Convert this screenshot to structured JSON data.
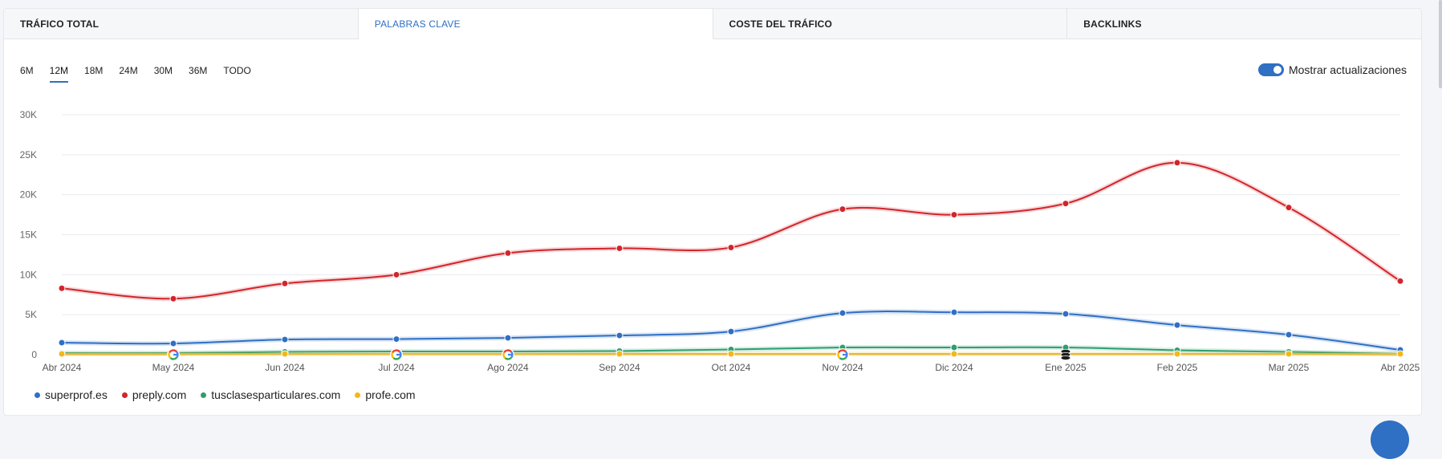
{
  "tabs": [
    {
      "label": "TRÁFICO TOTAL",
      "active": false
    },
    {
      "label": "PALABRAS CLAVE",
      "active": true
    },
    {
      "label": "COSTE DEL TRÁFICO",
      "active": false
    },
    {
      "label": "BACKLINKS",
      "active": false
    }
  ],
  "ranges": [
    {
      "label": "6M",
      "active": false
    },
    {
      "label": "12M",
      "active": true
    },
    {
      "label": "18M",
      "active": false
    },
    {
      "label": "24M",
      "active": false
    },
    {
      "label": "30M",
      "active": false
    },
    {
      "label": "36M",
      "active": false
    },
    {
      "label": "TODO",
      "active": false
    }
  ],
  "toggle": {
    "label": "Mostrar actualizaciones",
    "on": true
  },
  "colors": {
    "accent": "#2f6fc4",
    "superprof": "#2f6fc4",
    "preply": "#d1252b",
    "tusclases": "#2f9e6e",
    "profe": "#f1b81b"
  },
  "chart_data": {
    "type": "line",
    "title": "",
    "xlabel": "",
    "ylabel": "",
    "categories": [
      "Abr 2024",
      "May 2024",
      "Jun 2024",
      "Jul 2024",
      "Ago 2024",
      "Sep 2024",
      "Oct 2024",
      "Nov 2024",
      "Dic 2024",
      "Ene 2025",
      "Feb 2025",
      "Mar 2025",
      "Abr 2025"
    ],
    "ylim": [
      0,
      30000
    ],
    "yticks": [
      {
        "value": 0,
        "label": "0"
      },
      {
        "value": 5000,
        "label": "5K"
      },
      {
        "value": 10000,
        "label": "10K"
      },
      {
        "value": 15000,
        "label": "15K"
      },
      {
        "value": 20000,
        "label": "20K"
      },
      {
        "value": 25000,
        "label": "25K"
      },
      {
        "value": 30000,
        "label": "30K"
      }
    ],
    "grid": true,
    "legend_position": "bottom-left",
    "series": [
      {
        "name": "superprof.es",
        "color": "#2f6fc4",
        "values": [
          1500,
          1400,
          1900,
          1950,
          2100,
          2400,
          2900,
          5200,
          5300,
          5100,
          3700,
          2500,
          600
        ]
      },
      {
        "name": "preply.com",
        "color": "#d1252b",
        "values": [
          8300,
          7000,
          8900,
          10000,
          12700,
          13300,
          13400,
          18200,
          17500,
          18900,
          24000,
          18400,
          9200
        ]
      },
      {
        "name": "tusclasesparticulares.com",
        "color": "#2f9e6e",
        "values": [
          200,
          200,
          350,
          400,
          400,
          450,
          650,
          900,
          900,
          900,
          550,
          350,
          100
        ]
      },
      {
        "name": "profe.com",
        "color": "#f1b81b",
        "values": [
          100,
          100,
          100,
          100,
          100,
          100,
          100,
          100,
          100,
          100,
          100,
          100,
          100
        ]
      }
    ],
    "update_markers": [
      {
        "category": "May 2024",
        "icon": "google-icon"
      },
      {
        "category": "Jul 2024",
        "icon": "google-icon"
      },
      {
        "category": "Ago 2024",
        "icon": "google-icon"
      },
      {
        "category": "Nov 2024",
        "icon": "google-icon"
      },
      {
        "category": "Ene 2025",
        "icon": "database-icon"
      }
    ]
  }
}
